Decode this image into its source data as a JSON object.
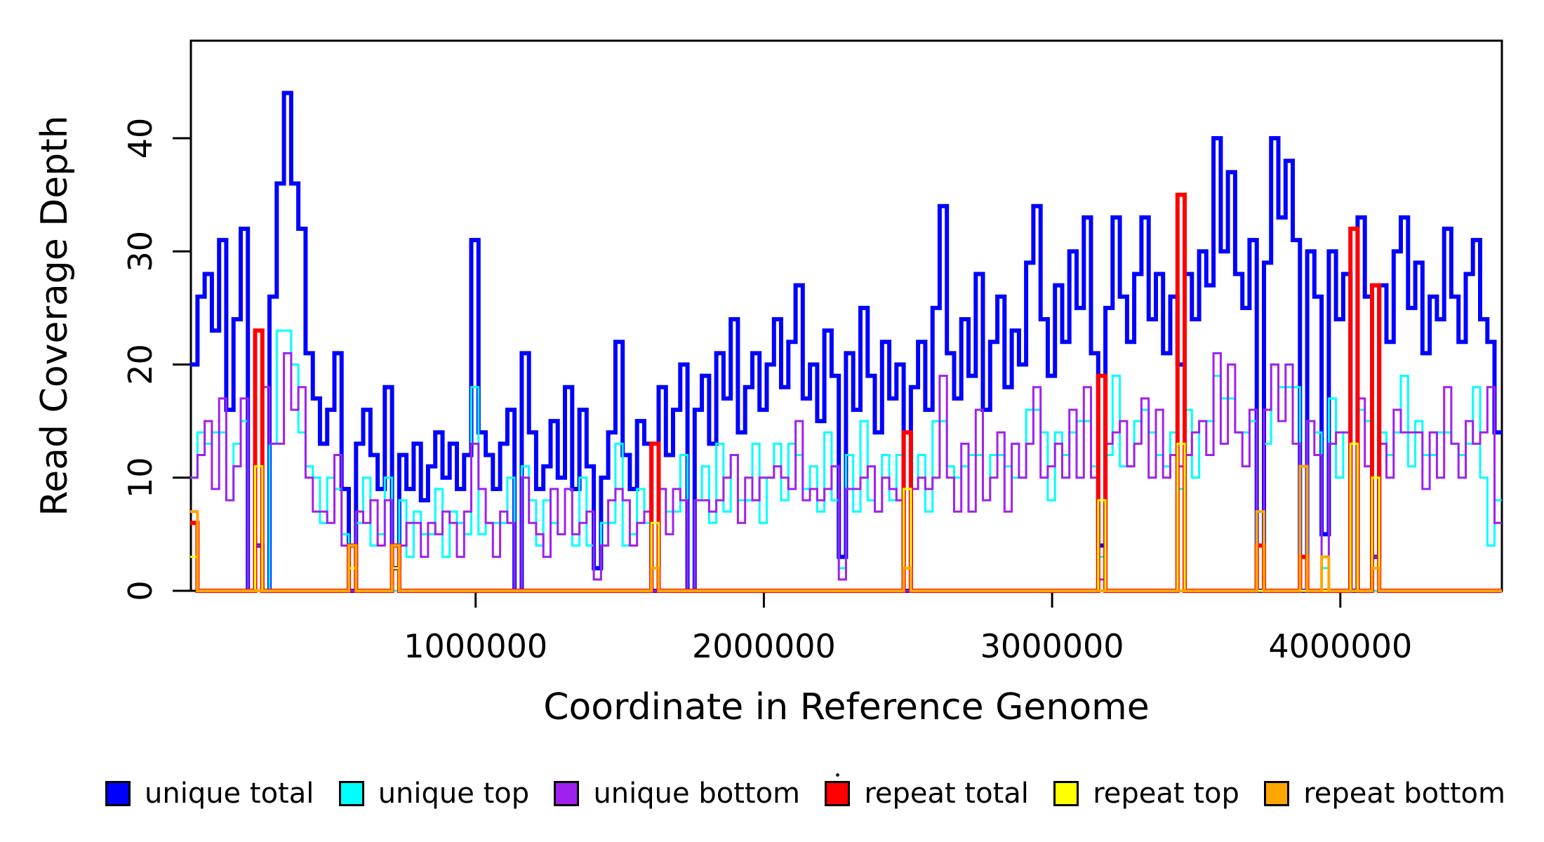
{
  "figure": {
    "background": "#FFFFFF",
    "text_color": "#000000"
  },
  "chart_data": {
    "type": "line",
    "subtype": "step-coverage",
    "title": "",
    "xlabel": "Coordinate in Reference Genome",
    "ylabel": "Read Coverage Depth",
    "grid": false,
    "legend_position": "bottom",
    "xlim": [
      0,
      4560000
    ],
    "ylim": [
      0,
      48.6
    ],
    "x_ticks": [
      1000000,
      2000000,
      3000000,
      4000000
    ],
    "y_ticks": [
      0,
      10,
      20,
      30,
      40
    ],
    "x_start": 10000,
    "bin_size": 25000,
    "series": [
      {
        "name": "unique total",
        "color": "#0000FF",
        "line_width": 6,
        "values": [
          20,
          26,
          28,
          23,
          31,
          16,
          24,
          32,
          0,
          4,
          0,
          26,
          36,
          44,
          36,
          32,
          21,
          17,
          13,
          16,
          21,
          9,
          0,
          13,
          16,
          12,
          9,
          18,
          2,
          12,
          9,
          13,
          8,
          11,
          14,
          10,
          13,
          9,
          12,
          31,
          14,
          12,
          9,
          13,
          16,
          0,
          21,
          14,
          9,
          11,
          15,
          10,
          18,
          9,
          16,
          11,
          2,
          10,
          14,
          22,
          12,
          9,
          15,
          13,
          0,
          18,
          12,
          16,
          20,
          0,
          16,
          19,
          13,
          21,
          17,
          24,
          14,
          18,
          21,
          16,
          20,
          24,
          18,
          22,
          27,
          17,
          20,
          15,
          23,
          19,
          3,
          21,
          16,
          25,
          19,
          14,
          22,
          17,
          20,
          0,
          18,
          22,
          16,
          25,
          34,
          21,
          17,
          24,
          19,
          28,
          16,
          22,
          26,
          18,
          23,
          20,
          29,
          34,
          24,
          19,
          27,
          22,
          30,
          25,
          33,
          21,
          4,
          25,
          33,
          26,
          22,
          28,
          33,
          24,
          28,
          21,
          26,
          20,
          28,
          24,
          30,
          27,
          40,
          30,
          37,
          28,
          25,
          31,
          0,
          29,
          40,
          33,
          38,
          31,
          0,
          30,
          26,
          5,
          30,
          24,
          28,
          0,
          33,
          26,
          3,
          27,
          22,
          30,
          33,
          25,
          29,
          21,
          26,
          24,
          32,
          26,
          22,
          28,
          31,
          24,
          22,
          14
        ]
      },
      {
        "name": "unique top",
        "color": "#00FFFF",
        "line_width": 3,
        "values": [
          10,
          14,
          13,
          14,
          14,
          8,
          13,
          15,
          0,
          0,
          0,
          13,
          23,
          23,
          20,
          14,
          11,
          10,
          6,
          10,
          9,
          5,
          0,
          6,
          10,
          4,
          5,
          10,
          0,
          8,
          3,
          7,
          5,
          5,
          9,
          3,
          7,
          6,
          5,
          18,
          5,
          6,
          6,
          6,
          10,
          0,
          11,
          8,
          4,
          8,
          6,
          5,
          9,
          4,
          10,
          4,
          1,
          6,
          6,
          13,
          4,
          5,
          9,
          6,
          0,
          9,
          7,
          7,
          12,
          0,
          8,
          11,
          6,
          13,
          7,
          12,
          8,
          8,
          13,
          6,
          10,
          13,
          8,
          13,
          12,
          9,
          11,
          7,
          14,
          8,
          2,
          12,
          7,
          15,
          8,
          7,
          12,
          8,
          12,
          0,
          9,
          12,
          7,
          15,
          15,
          11,
          10,
          11,
          12,
          12,
          8,
          12,
          12,
          11,
          10,
          10,
          16,
          16,
          14,
          8,
          14,
          12,
          14,
          15,
          15,
          11,
          3,
          12,
          19,
          11,
          11,
          15,
          16,
          14,
          12,
          11,
          14,
          9,
          16,
          10,
          15,
          15,
          19,
          17,
          17,
          14,
          14,
          15,
          0,
          13,
          20,
          18,
          18,
          18,
          0,
          15,
          14,
          2,
          17,
          10,
          14,
          0,
          16,
          15,
          0,
          14,
          12,
          14,
          19,
          11,
          15,
          12,
          12,
          14,
          14,
          13,
          12,
          13,
          18,
          10,
          4,
          8
        ]
      },
      {
        "name": "unique bottom",
        "color": "#A020F0",
        "line_width": 3,
        "values": [
          10,
          12,
          15,
          9,
          17,
          8,
          11,
          17,
          0,
          4,
          18,
          13,
          13,
          21,
          16,
          18,
          10,
          7,
          7,
          6,
          12,
          4,
          0,
          7,
          6,
          8,
          4,
          8,
          2,
          4,
          6,
          6,
          3,
          6,
          5,
          7,
          6,
          3,
          7,
          13,
          9,
          6,
          3,
          7,
          6,
          0,
          10,
          6,
          5,
          3,
          9,
          5,
          9,
          5,
          6,
          7,
          1,
          4,
          8,
          9,
          8,
          4,
          6,
          7,
          0,
          9,
          5,
          9,
          8,
          0,
          8,
          8,
          7,
          8,
          10,
          12,
          6,
          10,
          8,
          10,
          10,
          11,
          10,
          9,
          15,
          8,
          9,
          8,
          9,
          11,
          1,
          9,
          9,
          10,
          11,
          7,
          10,
          9,
          8,
          0,
          9,
          10,
          9,
          10,
          19,
          10,
          7,
          13,
          7,
          16,
          8,
          10,
          14,
          7,
          13,
          10,
          13,
          18,
          10,
          11,
          13,
          10,
          16,
          10,
          18,
          10,
          1,
          13,
          14,
          15,
          11,
          13,
          17,
          10,
          16,
          10,
          12,
          11,
          12,
          14,
          15,
          12,
          21,
          13,
          20,
          14,
          11,
          16,
          0,
          16,
          20,
          15,
          20,
          13,
          0,
          15,
          12,
          3,
          13,
          14,
          14,
          0,
          17,
          11,
          3,
          13,
          10,
          16,
          14,
          14,
          14,
          9,
          14,
          10,
          18,
          13,
          10,
          15,
          13,
          14,
          18,
          6
        ]
      },
      {
        "name": "repeat total",
        "color": "#FF0000",
        "line_width": 6,
        "base_value": 0,
        "bin_count": 182,
        "spikes": {
          "0": 6,
          "9": 23,
          "22": 4,
          "28": 4,
          "64": 13,
          "99": 14,
          "126": 19,
          "137": 35,
          "148": 4,
          "154": 3,
          "161": 32,
          "164": 27
        }
      },
      {
        "name": "repeat top",
        "color": "#FFFF00",
        "line_width": 3,
        "base_value": 0,
        "bin_count": 182,
        "spikes": {
          "0": 3,
          "9": 11,
          "22": 2,
          "28": 2,
          "64": 6,
          "99": 9,
          "126": 8,
          "137": 13,
          "161": 13,
          "164": 10
        }
      },
      {
        "name": "repeat bottom",
        "color": "#FFA500",
        "line_width": 4,
        "base_value": 0,
        "bin_count": 182,
        "spikes": {
          "0": 7,
          "22": 4,
          "28": 4,
          "64": 2,
          "99": 2,
          "148": 7,
          "154": 11,
          "157": 3,
          "164": 2
        }
      }
    ]
  }
}
